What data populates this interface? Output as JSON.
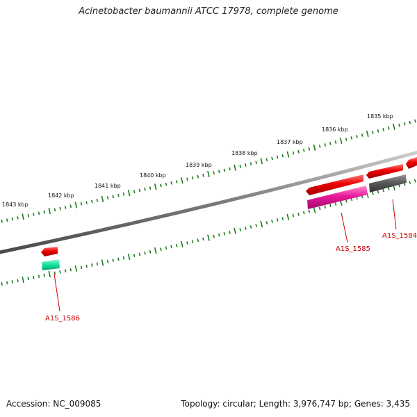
{
  "title": "Acinetobacter baumannii ATCC 17978, complete genome",
  "footer": {
    "accession": "Accession: NC_009085",
    "summary": "Topology: circular; Length: 3,976,747 bp; Genes: 3,435"
  },
  "ruler": {
    "labels": [
      "1835 kbp",
      "1836 kbp",
      "1837 kbp",
      "1838 kbp",
      "1839 kbp",
      "1840 kbp",
      "1841 kbp",
      "1842 kbp",
      "1843 kbp"
    ]
  },
  "genes": {
    "labels": [
      "A1S_1584",
      "A1S_1585",
      "A1S_1586"
    ]
  },
  "colors": {
    "backbone": "#7a7a7a",
    "tick": "#1a7a1a",
    "forward_gene": "#ee0000",
    "reverse_magenta": "#e8189a",
    "reverse_gray": "#555555",
    "reverse_teal": "#19e6a0",
    "label_red": "#cc0000"
  }
}
